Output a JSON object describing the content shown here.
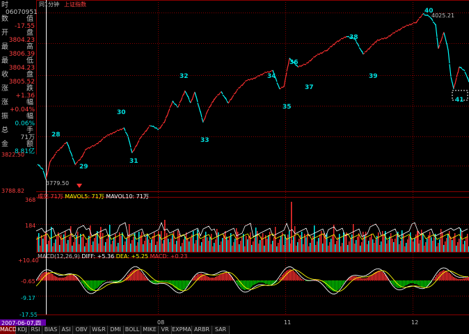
{
  "header": {
    "menu_label": "同1分钟",
    "index_name": "上证指数"
  },
  "info_panel": {
    "rows": [
      {
        "label": "时",
        "value": "06070951",
        "color": "#c0c0c0"
      },
      {
        "label": "数",
        "char": "值",
        "value": "-17.55",
        "color": "#ff4040"
      },
      {
        "label": "开",
        "char": "盘",
        "value": "3804.23",
        "color": "#ff4040"
      },
      {
        "label": "最",
        "char": "高",
        "value": "3806.39",
        "color": "#ff4040"
      },
      {
        "label": "最",
        "char": "低",
        "value": "3804.23",
        "color": "#ff4040"
      },
      {
        "label": "收",
        "char": "盘",
        "value": "3805.52",
        "color": "#ff4040"
      },
      {
        "label": "涨",
        "char": "跌",
        "value": "+1.36",
        "color": "#ff4040"
      },
      {
        "label": "涨",
        "char": "幅",
        "value": "+0.04%",
        "color": "#ff4040"
      },
      {
        "label": "振",
        "char": "幅",
        "value": "0.06%",
        "color": "#00e0e0"
      },
      {
        "label": "总",
        "char": "手",
        "value": "71万",
        "color": "#c0c0c0"
      },
      {
        "label": "金",
        "char": "额",
        "value": "8.81亿",
        "color": "#00e0e0"
      }
    ]
  },
  "price_axis": {
    "ticks": [
      "3822.50",
      "3788.82"
    ]
  },
  "price_chart": {
    "labels": [
      {
        "text": "28",
        "color": "#00e0e0"
      },
      {
        "text": "29",
        "color": "#00e0e0"
      },
      {
        "text": "30",
        "color": "#00e0e0"
      },
      {
        "text": "31",
        "color": "#00e0e0"
      },
      {
        "text": "32",
        "color": "#00e0e0"
      },
      {
        "text": "33",
        "color": "#00e0e0"
      },
      {
        "text": "34",
        "color": "#00e0e0"
      },
      {
        "text": "35",
        "color": "#00e0e0"
      },
      {
        "text": "36",
        "color": "#00e0e0"
      },
      {
        "text": "37",
        "color": "#00e0e0"
      },
      {
        "text": "38",
        "color": "#00e0e0"
      },
      {
        "text": "39",
        "color": "#00e0e0"
      },
      {
        "text": "40",
        "color": "#00e0e0"
      },
      {
        "text": "41",
        "color": "#00e0e0"
      }
    ],
    "low_marker": "3779.50",
    "high_marker": "4025.21"
  },
  "volume": {
    "header": {
      "vol": "成交 71万",
      "ma5": "MAVOL5: 71万",
      "ma10": "MAVOL10: 71万"
    },
    "ticks": [
      "368",
      "184"
    ]
  },
  "macd": {
    "header": {
      "name": "MACD(12,26,9)",
      "diff": "DIFF: +5.36",
      "dea": "DEA: +5.25",
      "macd": "MACD: +0.23"
    },
    "ticks": [
      "+10.40",
      "-0.65",
      "-9.17",
      "-17.55"
    ]
  },
  "x_axis": {
    "date": "2007-06-07,四",
    "labels": [
      "08",
      "11",
      "12"
    ]
  },
  "tabs": [
    "MACD",
    "KDJ",
    "RSI",
    "BIAS",
    "ASI",
    "OBV",
    "W&R",
    "DMI",
    "BOLL",
    "MIKE",
    "VR",
    "EXPMA",
    "ARBR",
    "SAR"
  ],
  "colors": {
    "up": "#ff3030",
    "down": "#00ffff",
    "grid": "#8b0000",
    "label": "#00e0e0",
    "ma_white": "#ffffff",
    "ma_yellow": "#ffff00"
  }
}
